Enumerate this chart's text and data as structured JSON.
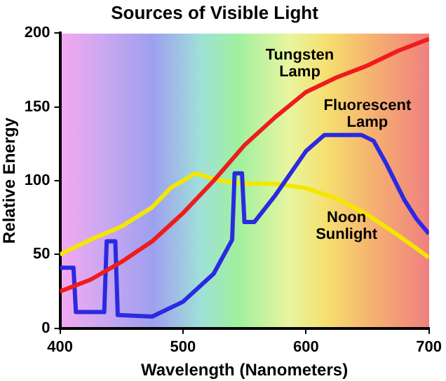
{
  "chart_data": {
    "type": "line",
    "title": "Sources of Visible Light",
    "xlabel": "Wavelength (Nanometers)",
    "ylabel": "Relative Energy",
    "xlim": [
      400,
      700
    ],
    "xticks": [
      400,
      500,
      600,
      700
    ],
    "ylim": [
      0,
      200
    ],
    "yticks": [
      0,
      50,
      100,
      150,
      200
    ],
    "grid": false,
    "legend": false,
    "marker": "none",
    "line_style": "solid",
    "series": [
      {
        "name": "Tungsten Lamp",
        "color": "#ee1c1c",
        "x": [
          400,
          425,
          450,
          475,
          500,
          525,
          550,
          575,
          600,
          625,
          650,
          675,
          700
        ],
        "values": [
          25,
          33,
          45,
          59,
          78,
          100,
          124,
          143,
          160,
          170,
          178,
          188,
          196
        ]
      },
      {
        "name": "Fluorescent Lamp",
        "color": "#2a2ae0",
        "x": [
          400,
          411,
          413,
          436,
          438,
          445,
          447,
          475,
          500,
          525,
          540,
          542,
          548,
          550,
          558,
          575,
          600,
          615,
          645,
          655,
          665,
          680,
          690,
          700
        ],
        "values": [
          41,
          41,
          11,
          11,
          59,
          59,
          9,
          8,
          18,
          37,
          60,
          105,
          105,
          72,
          72,
          90,
          120,
          131,
          131,
          127,
          112,
          87,
          74,
          64
        ]
      },
      {
        "name": "Noon Sunlight",
        "color": "#f5e600",
        "x": [
          400,
          425,
          450,
          475,
          490,
          510,
          530,
          550,
          575,
          600,
          625,
          650,
          675,
          700
        ],
        "values": [
          50,
          60,
          69,
          82,
          95,
          105,
          100,
          98,
          98,
          95,
          88,
          77,
          63,
          48
        ]
      }
    ]
  }
}
